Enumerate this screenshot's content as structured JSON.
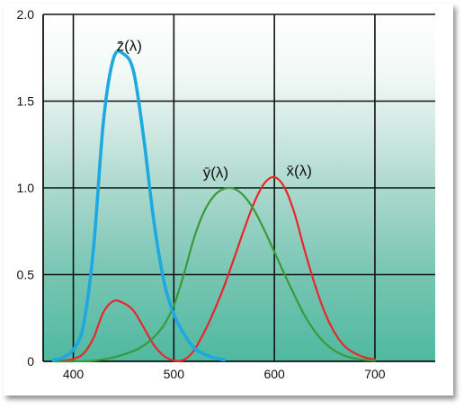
{
  "chart_data": {
    "type": "line",
    "title": "",
    "xlabel": "",
    "ylabel": "",
    "xlim": [
      370,
      760
    ],
    "ylim": [
      0,
      2.0
    ],
    "xticks": [
      400,
      500,
      600,
      700
    ],
    "yticks": [
      0,
      0.5,
      1.0,
      1.5,
      2.0
    ],
    "xtick_labels": [
      "400",
      "500",
      "600",
      "700"
    ],
    "ytick_labels": [
      "0",
      "0.5",
      "1.0",
      "1.5",
      "2.0"
    ],
    "grid": true,
    "legend": "none",
    "series": [
      {
        "name": "x̄(λ)",
        "color": "#e8262b",
        "x": [
          380,
          390,
          400,
          410,
          420,
          430,
          440,
          450,
          460,
          470,
          480,
          490,
          500,
          510,
          520,
          530,
          540,
          550,
          560,
          570,
          580,
          590,
          600,
          610,
          620,
          630,
          640,
          650,
          660,
          670,
          680,
          690,
          700
        ],
        "y": [
          0.001,
          0.004,
          0.014,
          0.044,
          0.134,
          0.284,
          0.348,
          0.336,
          0.291,
          0.195,
          0.096,
          0.032,
          0.005,
          0.009,
          0.063,
          0.166,
          0.29,
          0.433,
          0.595,
          0.762,
          0.916,
          1.026,
          1.062,
          1.003,
          0.854,
          0.642,
          0.448,
          0.284,
          0.165,
          0.087,
          0.047,
          0.023,
          0.011
        ]
      },
      {
        "name": "ȳ(λ)",
        "color": "#3a9a3a",
        "x": [
          380,
          400,
          420,
          440,
          460,
          470,
          480,
          490,
          500,
          510,
          520,
          530,
          540,
          550,
          560,
          570,
          580,
          590,
          600,
          610,
          620,
          630,
          640,
          650,
          660,
          670,
          680,
          690,
          700
        ],
        "y": [
          0.0,
          0.0,
          0.004,
          0.023,
          0.06,
          0.091,
          0.139,
          0.208,
          0.323,
          0.503,
          0.71,
          0.862,
          0.954,
          0.995,
          0.995,
          0.952,
          0.87,
          0.757,
          0.631,
          0.503,
          0.381,
          0.265,
          0.175,
          0.107,
          0.061,
          0.032,
          0.017,
          0.008,
          0.004
        ]
      },
      {
        "name": "z̄(λ)",
        "color": "#1ea8e0",
        "x": [
          380,
          390,
          400,
          410,
          420,
          430,
          440,
          450,
          460,
          470,
          480,
          490,
          500,
          510,
          520,
          530,
          540,
          550
        ],
        "y": [
          0.007,
          0.023,
          0.068,
          0.207,
          0.646,
          1.386,
          1.747,
          1.772,
          1.669,
          1.288,
          0.813,
          0.465,
          0.272,
          0.158,
          0.078,
          0.042,
          0.02,
          0.009
        ]
      }
    ],
    "annotations": [
      {
        "series": 2,
        "text": "z̄(λ)",
        "x": 443,
        "y": 1.79
      },
      {
        "series": 1,
        "text": "ȳ(λ)",
        "x": 529,
        "y": 1.06
      },
      {
        "series": 0,
        "text": "x̄(λ)",
        "x": 612,
        "y": 1.07
      }
    ]
  }
}
